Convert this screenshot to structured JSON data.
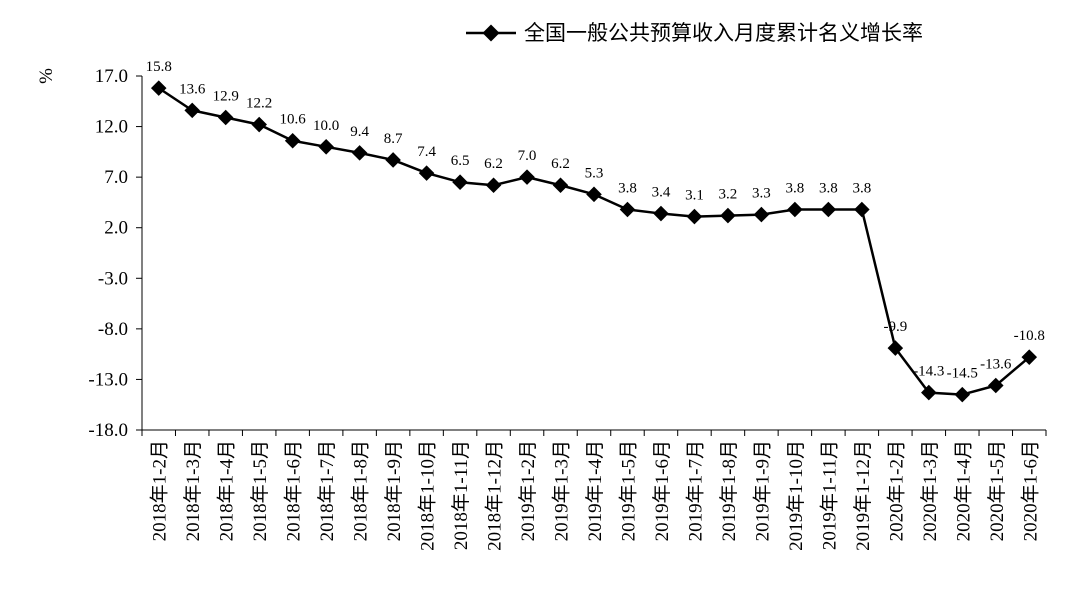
{
  "chart_data": {
    "type": "line",
    "title": "",
    "xlabel": "",
    "ylabel": "%",
    "ylim": [
      -18,
      17
    ],
    "y_ticks": [
      17,
      12,
      7,
      2,
      -3,
      -8,
      -13,
      -18
    ],
    "y_tick_labels": [
      "17.0",
      "12.0",
      "7.0",
      "2.0",
      "-3.0",
      "-8.0",
      "-13.0",
      "-18.0"
    ],
    "grid": false,
    "legend": {
      "position": "top-right"
    },
    "line_color": "#000000",
    "marker": "diamond",
    "categories": [
      "2018年1-2月",
      "2018年1-3月",
      "2018年1-4月",
      "2018年1-5月",
      "2018年1-6月",
      "2018年1-7月",
      "2018年1-8月",
      "2018年1-9月",
      "2018年1-10月",
      "2018年1-11月",
      "2018年1-12月",
      "2019年1-2月",
      "2019年1-3月",
      "2019年1-4月",
      "2019年1-5月",
      "2019年1-6月",
      "2019年1-7月",
      "2019年1-8月",
      "2019年1-9月",
      "2019年1-10月",
      "2019年1-11月",
      "2019年1-12月",
      "2020年1-2月",
      "2020年1-3月",
      "2020年1-4月",
      "2020年1-5月",
      "2020年1-6月"
    ],
    "series": [
      {
        "name": "全国一般公共预算收入月度累计名义增长率",
        "values": [
          15.8,
          13.6,
          12.9,
          12.2,
          10.6,
          10.0,
          9.4,
          8.7,
          7.4,
          6.5,
          6.2,
          7.0,
          6.2,
          5.3,
          3.8,
          3.4,
          3.1,
          3.2,
          3.3,
          3.8,
          3.8,
          3.8,
          -9.9,
          -14.3,
          -14.5,
          -13.6,
          -10.8
        ],
        "data_labels": [
          "15.8",
          "13.6",
          "12.9",
          "12.2",
          "10.6",
          "10.0",
          "9.4",
          "8.7",
          "7.4",
          "6.5",
          "6.2",
          "7.0",
          "6.2",
          "5.3",
          "3.8",
          "3.4",
          "3.1",
          "3.2",
          "3.3",
          "3.8",
          "3.8",
          "3.8",
          "-9.9",
          "-14.3",
          "-14.5",
          "-13.6",
          "-10.8"
        ]
      }
    ]
  }
}
